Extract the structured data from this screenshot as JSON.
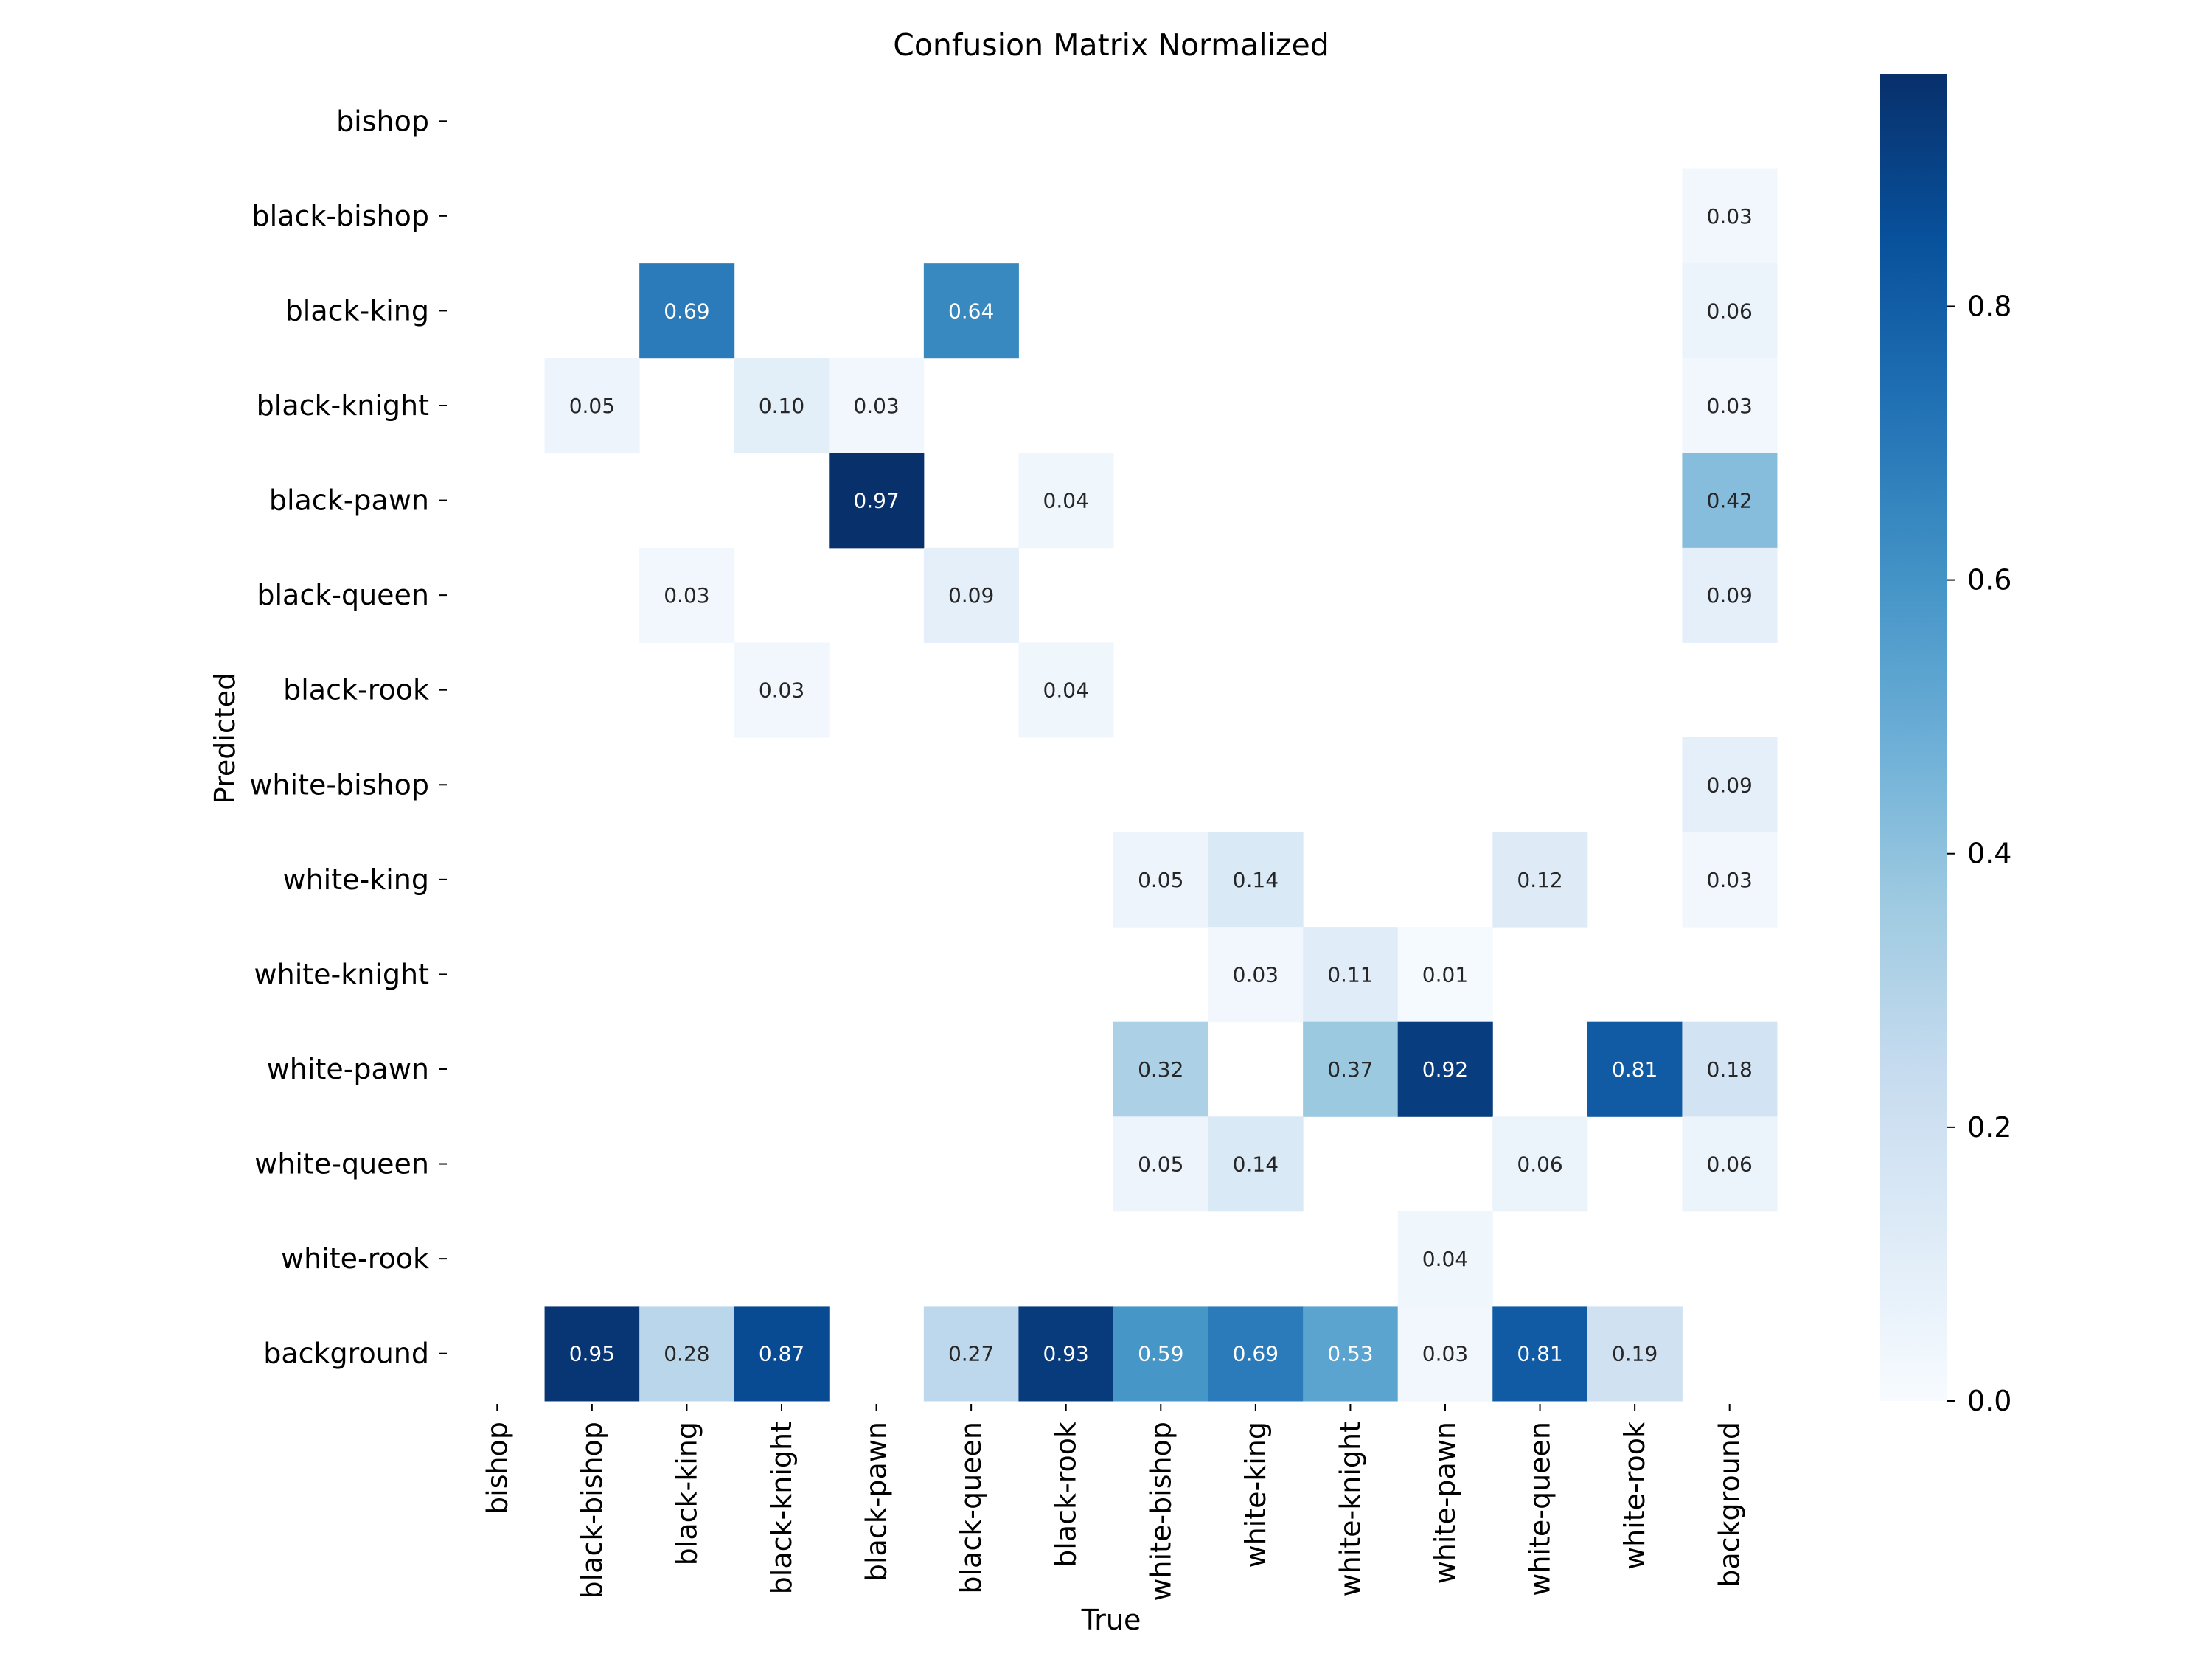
{
  "chart_data": {
    "type": "heatmap",
    "title": "Confusion Matrix Normalized",
    "xlabel": "True",
    "ylabel": "Predicted",
    "x_categories": [
      "bishop",
      "black-bishop",
      "black-king",
      "black-knight",
      "black-pawn",
      "black-queen",
      "black-rook",
      "white-bishop",
      "white-king",
      "white-knight",
      "white-pawn",
      "white-queen",
      "white-rook",
      "background"
    ],
    "y_categories": [
      "bishop",
      "black-bishop",
      "black-king",
      "black-knight",
      "black-pawn",
      "black-queen",
      "black-rook",
      "white-bishop",
      "white-king",
      "white-knight",
      "white-pawn",
      "white-queen",
      "white-rook",
      "background"
    ],
    "matrix": [
      [
        null,
        null,
        null,
        null,
        null,
        null,
        null,
        null,
        null,
        null,
        null,
        null,
        null,
        null
      ],
      [
        null,
        null,
        null,
        null,
        null,
        null,
        null,
        null,
        null,
        null,
        null,
        null,
        null,
        0.03
      ],
      [
        null,
        null,
        0.69,
        null,
        null,
        0.64,
        null,
        null,
        null,
        null,
        null,
        null,
        null,
        0.06
      ],
      [
        null,
        0.05,
        null,
        0.1,
        0.03,
        null,
        null,
        null,
        null,
        null,
        null,
        null,
        null,
        0.03
      ],
      [
        null,
        null,
        null,
        null,
        0.97,
        null,
        0.04,
        null,
        null,
        null,
        null,
        null,
        null,
        0.42
      ],
      [
        null,
        null,
        0.03,
        null,
        null,
        0.09,
        null,
        null,
        null,
        null,
        null,
        null,
        null,
        0.09
      ],
      [
        null,
        null,
        null,
        0.03,
        null,
        null,
        0.04,
        null,
        null,
        null,
        null,
        null,
        null,
        null
      ],
      [
        null,
        null,
        null,
        null,
        null,
        null,
        null,
        null,
        null,
        null,
        null,
        null,
        null,
        0.09
      ],
      [
        null,
        null,
        null,
        null,
        null,
        null,
        null,
        0.05,
        0.14,
        null,
        null,
        0.12,
        null,
        0.03
      ],
      [
        null,
        null,
        null,
        null,
        null,
        null,
        null,
        null,
        0.03,
        0.11,
        0.01,
        null,
        null,
        null
      ],
      [
        null,
        null,
        null,
        null,
        null,
        null,
        null,
        0.32,
        null,
        0.37,
        0.92,
        null,
        0.81,
        0.18
      ],
      [
        null,
        null,
        null,
        null,
        null,
        null,
        null,
        0.05,
        0.14,
        null,
        null,
        0.06,
        null,
        0.06
      ],
      [
        null,
        null,
        null,
        null,
        null,
        null,
        null,
        null,
        null,
        null,
        0.04,
        null,
        null,
        null
      ],
      [
        null,
        0.95,
        0.28,
        0.87,
        null,
        0.27,
        0.93,
        0.59,
        0.69,
        0.53,
        0.03,
        0.81,
        0.19,
        null
      ]
    ],
    "colorbar": {
      "min": 0.0,
      "max": 0.97,
      "ticks": [
        "0.0",
        "0.2",
        "0.4",
        "0.6",
        "0.8"
      ],
      "colormap": "Blues"
    },
    "grid": false
  }
}
